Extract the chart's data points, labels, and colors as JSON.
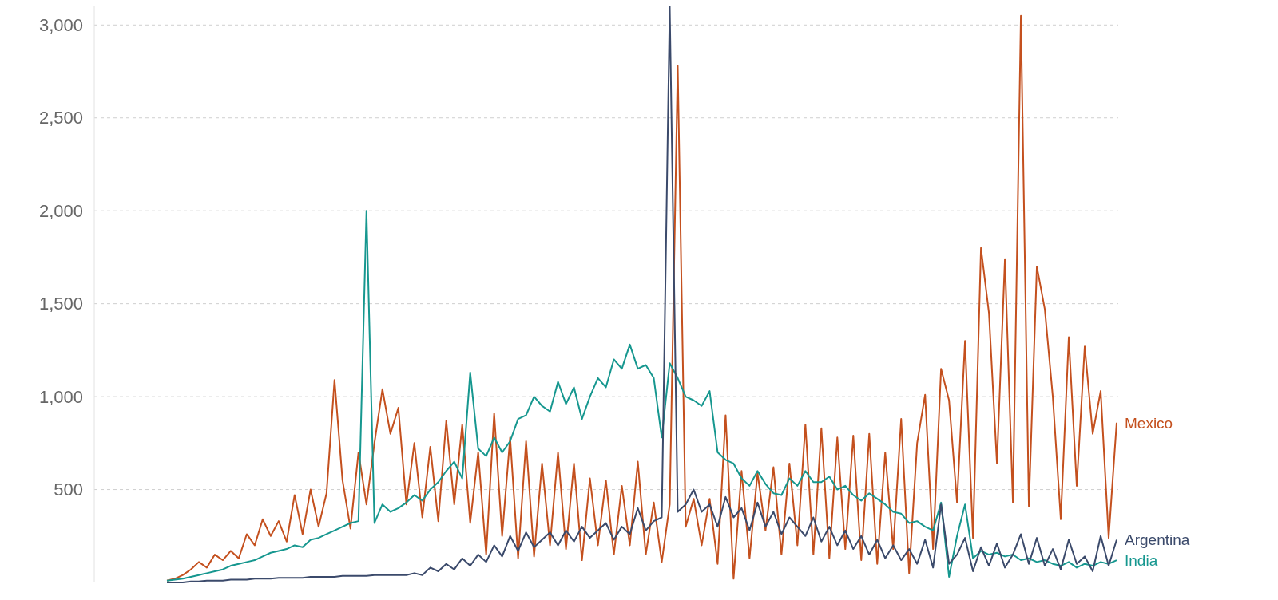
{
  "chart_data": {
    "type": "line",
    "categories": [
      null,
      null,
      null,
      null,
      null,
      null,
      null,
      null,
      null,
      null,
      null,
      null,
      null,
      null,
      null,
      null,
      null,
      null,
      null,
      null,
      null,
      null,
      null,
      null,
      null,
      null,
      null,
      null,
      null,
      null,
      null,
      null,
      null,
      null,
      null,
      null,
      null,
      null,
      null,
      null,
      null,
      null,
      null,
      null,
      null,
      null,
      null,
      null,
      null,
      null,
      null,
      null,
      null,
      null,
      null,
      null,
      null,
      null,
      null,
      null,
      null,
      null,
      null,
      null,
      null,
      null,
      null,
      null,
      null,
      null,
      null,
      null,
      null,
      null,
      null,
      null,
      null,
      null,
      null,
      null,
      null,
      null,
      null,
      null,
      null,
      null,
      null,
      null,
      null,
      null,
      null,
      null,
      null,
      null,
      null,
      null,
      null,
      null,
      null,
      null,
      null,
      null,
      null,
      null,
      null,
      null,
      null,
      null,
      null,
      null,
      null,
      null,
      null,
      null,
      null,
      null,
      null,
      null,
      null,
      null
    ],
    "ylim": [
      0,
      3100
    ],
    "yticks": [
      {
        "value": 500,
        "label": "500"
      },
      {
        "value": 1000,
        "label": "1,000"
      },
      {
        "value": 1500,
        "label": "1,500"
      },
      {
        "value": 2000,
        "label": "2,000"
      },
      {
        "value": 2500,
        "label": "2,500"
      },
      {
        "value": 3000,
        "label": "3,000"
      }
    ],
    "grid": "y",
    "tick_labels": "y",
    "series": [
      {
        "name": "Mexico",
        "color": "#c4501e",
        "values": [
          10,
          20,
          40,
          70,
          110,
          80,
          150,
          120,
          170,
          130,
          260,
          200,
          340,
          250,
          330,
          220,
          470,
          260,
          500,
          300,
          480,
          1090,
          550,
          290,
          700,
          420,
          750,
          1040,
          800,
          940,
          420,
          750,
          350,
          730,
          330,
          870,
          420,
          850,
          320,
          700,
          150,
          910,
          250,
          780,
          130,
          760,
          140,
          640,
          200,
          700,
          180,
          640,
          120,
          560,
          200,
          550,
          150,
          520,
          200,
          650,
          150,
          430,
          110,
          420,
          2780,
          300,
          450,
          200,
          450,
          100,
          900,
          20,
          600,
          130,
          590,
          280,
          620,
          150,
          640,
          200,
          850,
          150,
          830,
          130,
          780,
          180,
          790,
          120,
          800,
          100,
          700,
          180,
          880,
          50,
          750,
          1010,
          180,
          1150,
          980,
          430,
          1300,
          240,
          1800,
          1450,
          640,
          1740,
          430,
          3050,
          410,
          1700,
          1470,
          1000,
          340,
          1320,
          520,
          1270,
          800,
          1030,
          240,
          860
        ]
      },
      {
        "name": "India",
        "color": "#16978f",
        "values": [
          10,
          15,
          20,
          30,
          40,
          50,
          60,
          70,
          90,
          100,
          110,
          120,
          140,
          160,
          170,
          180,
          200,
          190,
          230,
          240,
          260,
          280,
          300,
          320,
          330,
          2000,
          320,
          420,
          380,
          400,
          430,
          470,
          440,
          500,
          540,
          600,
          650,
          560,
          1130,
          720,
          680,
          780,
          700,
          760,
          880,
          900,
          1000,
          950,
          920,
          1080,
          960,
          1050,
          880,
          1000,
          1100,
          1050,
          1200,
          1150,
          1280,
          1150,
          1170,
          1100,
          780,
          1180,
          1100,
          1000,
          980,
          950,
          1030,
          700,
          660,
          640,
          560,
          520,
          600,
          530,
          480,
          470,
          560,
          520,
          600,
          540,
          540,
          570,
          500,
          520,
          470,
          440,
          480,
          450,
          420,
          380,
          370,
          320,
          330,
          300,
          280,
          430,
          30,
          250,
          420,
          130,
          170,
          150,
          160,
          140,
          150,
          120,
          130,
          110,
          120,
          100,
          90,
          110,
          80,
          100,
          90,
          110,
          100,
          120
        ]
      },
      {
        "name": "Argentina",
        "color": "#3b4a6b",
        "values": [
          0,
          0,
          0,
          5,
          5,
          10,
          10,
          10,
          15,
          15,
          15,
          20,
          20,
          20,
          25,
          25,
          25,
          25,
          30,
          30,
          30,
          30,
          35,
          35,
          35,
          35,
          40,
          40,
          40,
          40,
          40,
          50,
          40,
          80,
          60,
          100,
          70,
          130,
          90,
          150,
          110,
          200,
          140,
          250,
          170,
          270,
          190,
          230,
          270,
          200,
          280,
          220,
          300,
          240,
          280,
          320,
          230,
          300,
          260,
          400,
          280,
          330,
          350,
          3100,
          380,
          420,
          500,
          380,
          420,
          300,
          460,
          350,
          400,
          280,
          430,
          300,
          380,
          260,
          350,
          300,
          250,
          350,
          220,
          300,
          200,
          280,
          180,
          250,
          150,
          230,
          130,
          200,
          120,
          180,
          100,
          230,
          80,
          420,
          100,
          150,
          240,
          60,
          190,
          90,
          210,
          80,
          150,
          260,
          100,
          240,
          90,
          180,
          70,
          230,
          100,
          140,
          60,
          250,
          90,
          230
        ]
      }
    ]
  }
}
